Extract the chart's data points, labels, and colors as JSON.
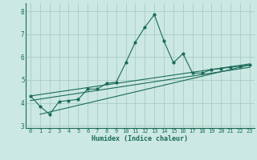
{
  "xlabel": "Humidex (Indice chaleur)",
  "background_color": "#cce8e2",
  "plot_bg_color": "#cce8e2",
  "grid_color": "#aaccc4",
  "line_color": "#1a6b5a",
  "xlim": [
    -0.5,
    23.5
  ],
  "ylim": [
    2.9,
    8.35
  ],
  "yticks": [
    3,
    4,
    5,
    6,
    7,
    8
  ],
  "xticks": [
    0,
    1,
    2,
    3,
    4,
    5,
    6,
    7,
    8,
    9,
    10,
    11,
    12,
    13,
    14,
    15,
    16,
    17,
    18,
    19,
    20,
    21,
    22,
    23
  ],
  "series1_x": [
    0,
    1,
    2,
    3,
    4,
    5,
    6,
    7,
    8,
    9,
    10,
    11,
    12,
    13,
    14,
    15,
    16,
    17,
    18,
    19,
    20,
    21,
    22,
    23
  ],
  "series1_y": [
    4.3,
    3.85,
    3.5,
    4.05,
    4.1,
    4.15,
    4.6,
    4.6,
    4.85,
    4.9,
    5.75,
    6.65,
    7.3,
    7.85,
    6.7,
    5.75,
    6.15,
    5.3,
    5.3,
    5.45,
    5.5,
    5.55,
    5.6,
    5.65
  ],
  "series2_x": [
    1,
    23
  ],
  "series2_y": [
    3.5,
    5.65
  ],
  "series3_x": [
    0,
    23
  ],
  "series3_y": [
    4.1,
    5.55
  ],
  "series4_x": [
    0,
    23
  ],
  "series4_y": [
    4.3,
    5.7
  ]
}
